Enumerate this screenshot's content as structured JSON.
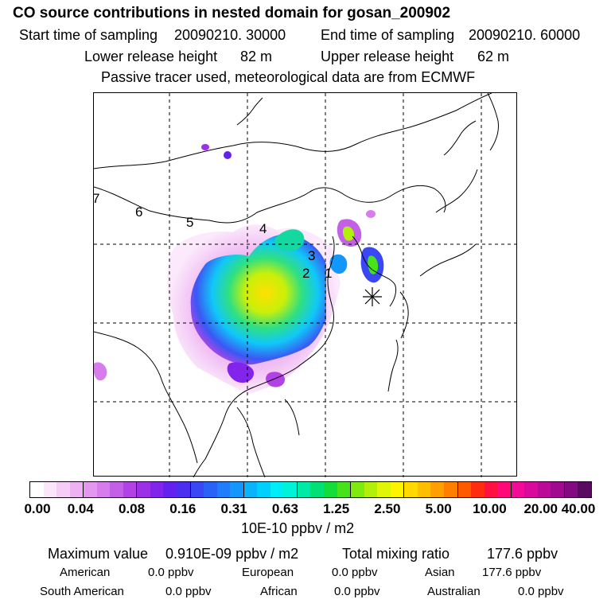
{
  "header": {
    "title": "CO  source contributions in nested domain for gosan_200902",
    "start_label": "Start time of sampling",
    "start_value": "20090210. 30000",
    "end_label": "End time of sampling",
    "end_value": "20090210. 60000",
    "lower_label": "Lower release height",
    "lower_value": "82 m",
    "upper_label": "Upper release height",
    "upper_value": "62 m",
    "tracer_note": "Passive tracer used, meteorological data are from ECMWF"
  },
  "map": {
    "source_labels": [
      "1",
      "2",
      "3",
      "4",
      "5",
      "6",
      "7"
    ],
    "receptor_marker": "asterisk-icon"
  },
  "colorbar": {
    "tick_labels": [
      "0.00",
      "0.04",
      "0.08",
      "0.16",
      "0.31",
      "0.63",
      "1.25",
      "2.50",
      "5.00",
      "10.00",
      "20.00",
      "40.00"
    ],
    "colors": [
      "#ffffff",
      "#fbe6fb",
      "#f6cdf6",
      "#eeb2f2",
      "#e497ee",
      "#d77cec",
      "#c45fe8",
      "#b342e6",
      "#9d2fe6",
      "#8224ec",
      "#6420ee",
      "#4c2ef0",
      "#3a47f4",
      "#2a62f8",
      "#1f7dfb",
      "#1497fc",
      "#0ab4fd",
      "#00d0fd",
      "#00ecf7",
      "#00f2d8",
      "#00eaa7",
      "#00e074",
      "#14dc3a",
      "#48e21b",
      "#7fea10",
      "#b2f00c",
      "#e0f606",
      "#fff400",
      "#ffda00",
      "#ffbe00",
      "#ffa000",
      "#ff7e00",
      "#ff5a00",
      "#ff2c10",
      "#ff1040",
      "#ff0a78",
      "#f20a98",
      "#d80a9c",
      "#bc0a98",
      "#a00a90",
      "#840a82",
      "#5a0a60"
    ],
    "unit": "10E-10 ppbv / m2"
  },
  "summary": {
    "max_label": "Maximum value",
    "max_value": "0.910E-09 ppbv / m2",
    "total_label": "Total mixing ratio",
    "total_value": "177.6 ppbv",
    "regions": [
      {
        "name": "American",
        "value": "0.0 ppbv"
      },
      {
        "name": "European",
        "value": "0.0 ppbv"
      },
      {
        "name": "Asian",
        "value": "177.6 ppbv"
      },
      {
        "name": "South American",
        "value": "0.0 ppbv"
      },
      {
        "name": "African",
        "value": "0.0 ppbv"
      },
      {
        "name": "Australian",
        "value": "0.0 ppbv"
      }
    ]
  }
}
